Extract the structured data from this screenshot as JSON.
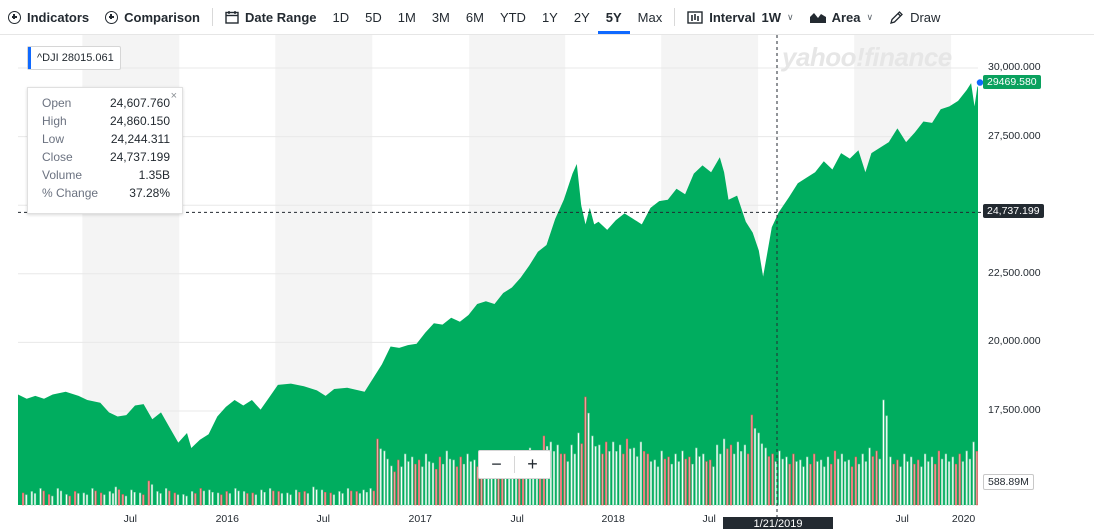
{
  "toolbar": {
    "indicators": "Indicators",
    "comparison": "Comparison",
    "date_range": "Date Range",
    "ranges": [
      "1D",
      "5D",
      "1M",
      "3M",
      "6M",
      "YTD",
      "1Y",
      "2Y",
      "5Y",
      "Max"
    ],
    "active_range": "5Y",
    "interval_label": "Interval",
    "interval_value": "1W",
    "chart_type": "Area",
    "draw": "Draw"
  },
  "legend": {
    "symbol_value": "^DJI 28015.061",
    "accent": "#0f69ff"
  },
  "tooltip": {
    "rows": [
      {
        "k": "Open",
        "v": "24,607.760"
      },
      {
        "k": "High",
        "v": "24,860.150"
      },
      {
        "k": "Low",
        "v": "24,244.311"
      },
      {
        "k": "Close",
        "v": "24,737.199"
      },
      {
        "k": "Volume",
        "v": "1.35B"
      },
      {
        "k": "% Change",
        "v": "37.28%"
      }
    ],
    "close_glyph": "×"
  },
  "watermark": "yahoo!finance",
  "crosshair": {
    "date_label": "1/21/2019",
    "value_label": "24,737.199",
    "value": 24737.199
  },
  "last_price": {
    "label": "29469.580",
    "value": 29469.58,
    "color": "#0aa15e"
  },
  "volume_label": "588.89M",
  "zoom": {
    "minus": "−",
    "plus": "+"
  },
  "chart_data": {
    "type": "area",
    "title": "",
    "ylim": [
      15800,
      31000
    ],
    "yticks": [
      30000,
      27500,
      25000,
      22500,
      20000,
      17500
    ],
    "ytick_labels": [
      "30,000.000",
      "27,500.000",
      "",
      "22,500.000",
      "20,000.000",
      "17,500.000"
    ],
    "xtick_labels": [
      {
        "label": "Jul",
        "t": 0.117
      },
      {
        "label": "2016",
        "t": 0.218
      },
      {
        "label": "Jul",
        "t": 0.318
      },
      {
        "label": "2017",
        "t": 0.419
      },
      {
        "label": "Jul",
        "t": 0.52
      },
      {
        "label": "2018",
        "t": 0.62
      },
      {
        "label": "Jul",
        "t": 0.72
      },
      {
        "label": "Jul",
        "t": 0.921
      },
      {
        "label": "2020",
        "t": 0.985
      }
    ],
    "series_color": "#00ad5f",
    "close_points": [
      [
        0.0,
        18100
      ],
      [
        0.01,
        17950
      ],
      [
        0.02,
        18050
      ],
      [
        0.03,
        17950
      ],
      [
        0.04,
        18100
      ],
      [
        0.055,
        18200
      ],
      [
        0.07,
        18050
      ],
      [
        0.08,
        17900
      ],
      [
        0.095,
        17800
      ],
      [
        0.105,
        17450
      ],
      [
        0.115,
        17300
      ],
      [
        0.125,
        17350
      ],
      [
        0.135,
        17700
      ],
      [
        0.145,
        17750
      ],
      [
        0.155,
        17200
      ],
      [
        0.165,
        17450
      ],
      [
        0.175,
        16900
      ],
      [
        0.185,
        16350
      ],
      [
        0.195,
        16700
      ],
      [
        0.2,
        16150
      ],
      [
        0.21,
        16450
      ],
      [
        0.22,
        16650
      ],
      [
        0.23,
        17300
      ],
      [
        0.24,
        17650
      ],
      [
        0.25,
        17900
      ],
      [
        0.26,
        17700
      ],
      [
        0.27,
        17900
      ],
      [
        0.28,
        17550
      ],
      [
        0.29,
        18000
      ],
      [
        0.3,
        18450
      ],
      [
        0.315,
        18500
      ],
      [
        0.33,
        18400
      ],
      [
        0.345,
        18250
      ],
      [
        0.355,
        18050
      ],
      [
        0.365,
        18300
      ],
      [
        0.38,
        18350
      ],
      [
        0.4,
        18200
      ],
      [
        0.41,
        18700
      ],
      [
        0.42,
        19200
      ],
      [
        0.43,
        19850
      ],
      [
        0.44,
        19800
      ],
      [
        0.45,
        19900
      ],
      [
        0.46,
        19950
      ],
      [
        0.47,
        20350
      ],
      [
        0.48,
        20700
      ],
      [
        0.49,
        20650
      ],
      [
        0.5,
        20900
      ],
      [
        0.51,
        20750
      ],
      [
        0.52,
        21000
      ],
      [
        0.53,
        21400
      ],
      [
        0.54,
        21500
      ],
      [
        0.55,
        21400
      ],
      [
        0.56,
        21800
      ],
      [
        0.57,
        22000
      ],
      [
        0.58,
        22350
      ],
      [
        0.59,
        22800
      ],
      [
        0.6,
        23300
      ],
      [
        0.61,
        23550
      ],
      [
        0.62,
        24500
      ],
      [
        0.63,
        25200
      ],
      [
        0.64,
        26150
      ],
      [
        0.645,
        26500
      ],
      [
        0.65,
        25000
      ],
      [
        0.655,
        24300
      ],
      [
        0.66,
        24900
      ],
      [
        0.665,
        24300
      ],
      [
        0.67,
        24400
      ],
      [
        0.68,
        24100
      ],
      [
        0.69,
        24450
      ],
      [
        0.7,
        24700
      ],
      [
        0.71,
        24500
      ],
      [
        0.72,
        24300
      ],
      [
        0.73,
        24900
      ],
      [
        0.74,
        25150
      ],
      [
        0.75,
        25200
      ],
      [
        0.76,
        25600
      ],
      [
        0.77,
        25400
      ],
      [
        0.78,
        26150
      ],
      [
        0.79,
        26450
      ],
      [
        0.8,
        26200
      ],
      [
        0.81,
        26750
      ],
      [
        0.815,
        26200
      ],
      [
        0.82,
        25200
      ],
      [
        0.83,
        25350
      ],
      [
        0.84,
        24400
      ],
      [
        0.848,
        24000
      ],
      [
        0.855,
        23350
      ],
      [
        0.86,
        22400
      ],
      [
        0.865,
        23300
      ],
      [
        0.87,
        24200
      ],
      [
        0.878,
        24737
      ],
      [
        0.89,
        25300
      ],
      [
        0.9,
        25800
      ],
      [
        0.91,
        26000
      ],
      [
        0.92,
        26200
      ],
      [
        0.93,
        26600
      ],
      [
        0.94,
        26300
      ],
      [
        0.95,
        26900
      ],
      [
        0.96,
        26700
      ],
      [
        0.97,
        27000
      ],
      [
        0.978,
        26200
      ],
      [
        0.985,
        26900
      ],
      [
        0.995,
        27100
      ],
      [
        1.005,
        27300
      ],
      [
        1.015,
        27800
      ],
      [
        1.025,
        27300
      ],
      [
        1.035,
        27650
      ],
      [
        1.045,
        28050
      ],
      [
        1.055,
        28000
      ],
      [
        1.065,
        28500
      ],
      [
        1.075,
        28600
      ],
      [
        1.085,
        28800
      ],
      [
        1.095,
        29200
      ],
      [
        1.1,
        29450
      ],
      [
        1.104,
        28600
      ],
      [
        1.108,
        29470
      ]
    ],
    "volume_bars": [
      [
        0.005,
        0.4
      ],
      [
        0.015,
        0.45
      ],
      [
        0.025,
        0.55
      ],
      [
        0.035,
        0.35
      ],
      [
        0.045,
        0.55
      ],
      [
        0.055,
        0.35
      ],
      [
        0.065,
        0.45
      ],
      [
        0.075,
        0.4
      ],
      [
        0.085,
        0.55
      ],
      [
        0.095,
        0.4
      ],
      [
        0.105,
        0.45
      ],
      [
        0.112,
        0.6
      ],
      [
        0.12,
        0.35
      ],
      [
        0.13,
        0.5
      ],
      [
        0.14,
        0.4
      ],
      [
        0.15,
        0.8
      ],
      [
        0.16,
        0.45
      ],
      [
        0.17,
        0.55
      ],
      [
        0.18,
        0.4
      ],
      [
        0.19,
        0.35
      ],
      [
        0.2,
        0.45
      ],
      [
        0.21,
        0.55
      ],
      [
        0.22,
        0.5
      ],
      [
        0.23,
        0.4
      ],
      [
        0.24,
        0.45
      ],
      [
        0.25,
        0.55
      ],
      [
        0.26,
        0.45
      ],
      [
        0.27,
        0.4
      ],
      [
        0.28,
        0.5
      ],
      [
        0.29,
        0.55
      ],
      [
        0.3,
        0.45
      ],
      [
        0.31,
        0.4
      ],
      [
        0.32,
        0.5
      ],
      [
        0.33,
        0.45
      ],
      [
        0.34,
        0.6
      ],
      [
        0.35,
        0.5
      ],
      [
        0.36,
        0.4
      ],
      [
        0.37,
        0.45
      ],
      [
        0.38,
        0.55
      ],
      [
        0.39,
        0.45
      ],
      [
        0.398,
        0.5
      ],
      [
        0.406,
        0.55
      ],
      [
        0.414,
        2.2
      ],
      [
        0.422,
        1.8
      ],
      [
        0.43,
        1.3
      ],
      [
        0.438,
        1.5
      ],
      [
        0.446,
        1.7
      ],
      [
        0.454,
        1.6
      ],
      [
        0.462,
        1.5
      ],
      [
        0.47,
        1.7
      ],
      [
        0.478,
        1.4
      ],
      [
        0.486,
        1.6
      ],
      [
        0.494,
        1.8
      ],
      [
        0.502,
        1.5
      ],
      [
        0.51,
        1.6
      ],
      [
        0.518,
        1.7
      ],
      [
        0.526,
        1.5
      ],
      [
        0.534,
        1.6
      ],
      [
        0.542,
        1.8
      ],
      [
        0.55,
        1.4
      ],
      [
        0.558,
        1.7
      ],
      [
        0.566,
        1.8
      ],
      [
        0.574,
        1.6
      ],
      [
        0.582,
        1.5
      ],
      [
        0.59,
        1.9
      ],
      [
        0.598,
        1.7
      ],
      [
        0.606,
        2.3
      ],
      [
        0.614,
        2.1
      ],
      [
        0.622,
        2.0
      ],
      [
        0.63,
        1.7
      ],
      [
        0.638,
        2.0
      ],
      [
        0.646,
        2.4
      ],
      [
        0.654,
        3.6
      ],
      [
        0.662,
        2.3
      ],
      [
        0.67,
        2.0
      ],
      [
        0.678,
        2.1
      ],
      [
        0.686,
        2.1
      ],
      [
        0.694,
        2.0
      ],
      [
        0.702,
        2.2
      ],
      [
        0.71,
        1.9
      ],
      [
        0.718,
        2.1
      ],
      [
        0.726,
        1.7
      ],
      [
        0.734,
        1.5
      ],
      [
        0.742,
        1.8
      ],
      [
        0.75,
        1.6
      ],
      [
        0.758,
        1.7
      ],
      [
        0.766,
        1.8
      ],
      [
        0.774,
        1.6
      ],
      [
        0.782,
        1.9
      ],
      [
        0.79,
        1.7
      ],
      [
        0.798,
        1.5
      ],
      [
        0.806,
        2.0
      ],
      [
        0.814,
        2.2
      ],
      [
        0.822,
        2.0
      ],
      [
        0.83,
        2.1
      ],
      [
        0.838,
        2.0
      ],
      [
        0.846,
        3.0
      ],
      [
        0.854,
        2.4
      ],
      [
        0.862,
        1.9
      ],
      [
        0.87,
        1.7
      ],
      [
        0.878,
        1.8
      ],
      [
        0.886,
        1.6
      ],
      [
        0.894,
        1.7
      ],
      [
        0.902,
        1.5
      ],
      [
        0.91,
        1.6
      ],
      [
        0.918,
        1.7
      ],
      [
        0.926,
        1.5
      ],
      [
        0.934,
        1.6
      ],
      [
        0.942,
        1.8
      ],
      [
        0.95,
        1.7
      ],
      [
        0.958,
        1.5
      ],
      [
        0.966,
        1.6
      ],
      [
        0.974,
        1.7
      ],
      [
        0.982,
        1.9
      ],
      [
        0.99,
        1.8
      ],
      [
        0.998,
        3.5
      ],
      [
        1.006,
        1.6
      ],
      [
        1.014,
        1.5
      ],
      [
        1.022,
        1.7
      ],
      [
        1.03,
        1.6
      ],
      [
        1.038,
        1.5
      ],
      [
        1.046,
        1.7
      ],
      [
        1.054,
        1.6
      ],
      [
        1.062,
        1.8
      ],
      [
        1.07,
        1.7
      ],
      [
        1.078,
        1.6
      ],
      [
        1.086,
        1.7
      ],
      [
        1.094,
        1.8
      ],
      [
        1.102,
        2.1
      ]
    ]
  }
}
